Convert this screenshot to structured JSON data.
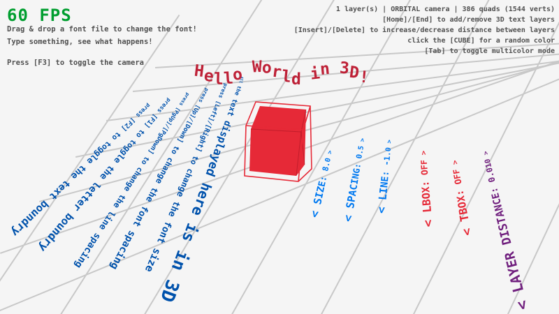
{
  "hud": {
    "fps": "60 FPS",
    "hint_drag": "Drag & drop a font file to change the font!",
    "hint_type": "Type something, see what happens!",
    "hint_camera": "Press [F3] to toggle the camera",
    "status": "1 layer(s) | ORBITAL camera |  386 quads (1544 verts)",
    "help_layers": "[Home]/[End] to add/remove 3D text layers",
    "help_distance": "[Insert]/[Delete] to increase/decrease distance between layers",
    "help_cube": "click the [CUBE] for a random color",
    "help_multicolor": "[Tab] to toggle multicolor mode"
  },
  "scene": {
    "typed_text": "Hello World in 3D!",
    "caption": "All the text displayed here is in 3D",
    "help_lines": [
      "press [F2] to toggle the text boundry",
      "press [F1] to toggle the letter boundry",
      "press [PgUp]/[PgDown] to change the line spacing",
      "press [Up]/[Down] to change the font spacing",
      "press [Left]/[Right] to change the font size"
    ],
    "params": [
      {
        "label": "< SIZE: 8.0 >",
        "color": "#0079F1"
      },
      {
        "label": "< SPACING: 0.5 >",
        "color": "#0079F1"
      },
      {
        "label": "< LINE: -1.0 >",
        "color": "#0079F1"
      },
      {
        "label": "< LBOX: OFF >",
        "color": "#E62937"
      },
      {
        "label": "< TBOX: OFF >",
        "color": "#E62937"
      },
      {
        "label": "< LAYER DISTANCE: 0.010 >",
        "color": "#701F7E"
      }
    ]
  },
  "colors": {
    "background": "#F5F5F5",
    "fps_green": "#009E2F",
    "hud_gray": "#505050",
    "ground_text_dark_blue": "#0052AC",
    "param_blue": "#0079F1",
    "param_red": "#E62937",
    "param_purple": "#701F7E",
    "cube_red": "#E62937",
    "title_red": "#BE2137",
    "grid_gray": "#C8C8C8"
  }
}
